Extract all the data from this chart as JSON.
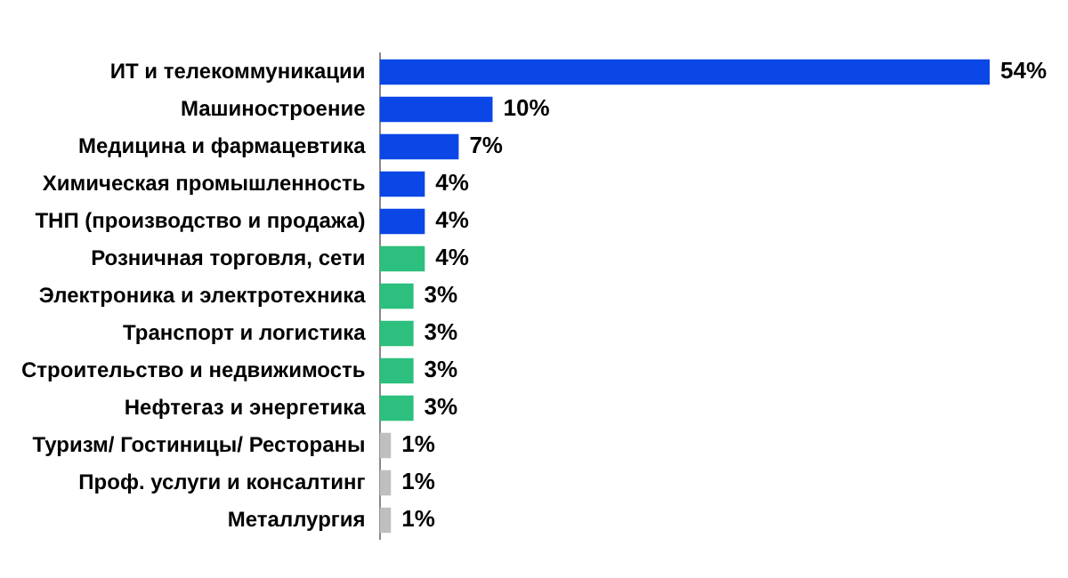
{
  "chart_data": {
    "type": "bar",
    "orientation": "horizontal",
    "categories": [
      "ИТ и телекоммуникации",
      "Машиностроение",
      "Медицина и фармацевтика",
      "Химическая промышленность",
      "ТНП (производство и продажа)",
      "Розничная торговля, сети",
      "Электроника и электротехника",
      "Транспорт и логистика",
      "Строительство и недвижимость",
      "Нефтегаз и энергетика",
      "Туризм/ Гостиницы/ Рестораны",
      "Проф. услуги и консалтинг",
      "Металлургия"
    ],
    "values": [
      54,
      10,
      7,
      4,
      4,
      4,
      3,
      3,
      3,
      3,
      1,
      1,
      1
    ],
    "colors": [
      "#0b47e6",
      "#0b47e6",
      "#0b47e6",
      "#0b47e6",
      "#0b47e6",
      "#2cbf7d",
      "#2cbf7d",
      "#2cbf7d",
      "#2cbf7d",
      "#2cbf7d",
      "#bfbfbf",
      "#bfbfbf",
      "#bfbfbf"
    ],
    "value_labels": [
      "54%",
      "10%",
      "7%",
      "4%",
      "4%",
      "4%",
      "3%",
      "3%",
      "3%",
      "3%",
      "1%",
      "1%",
      "1%"
    ],
    "legend": false
  }
}
